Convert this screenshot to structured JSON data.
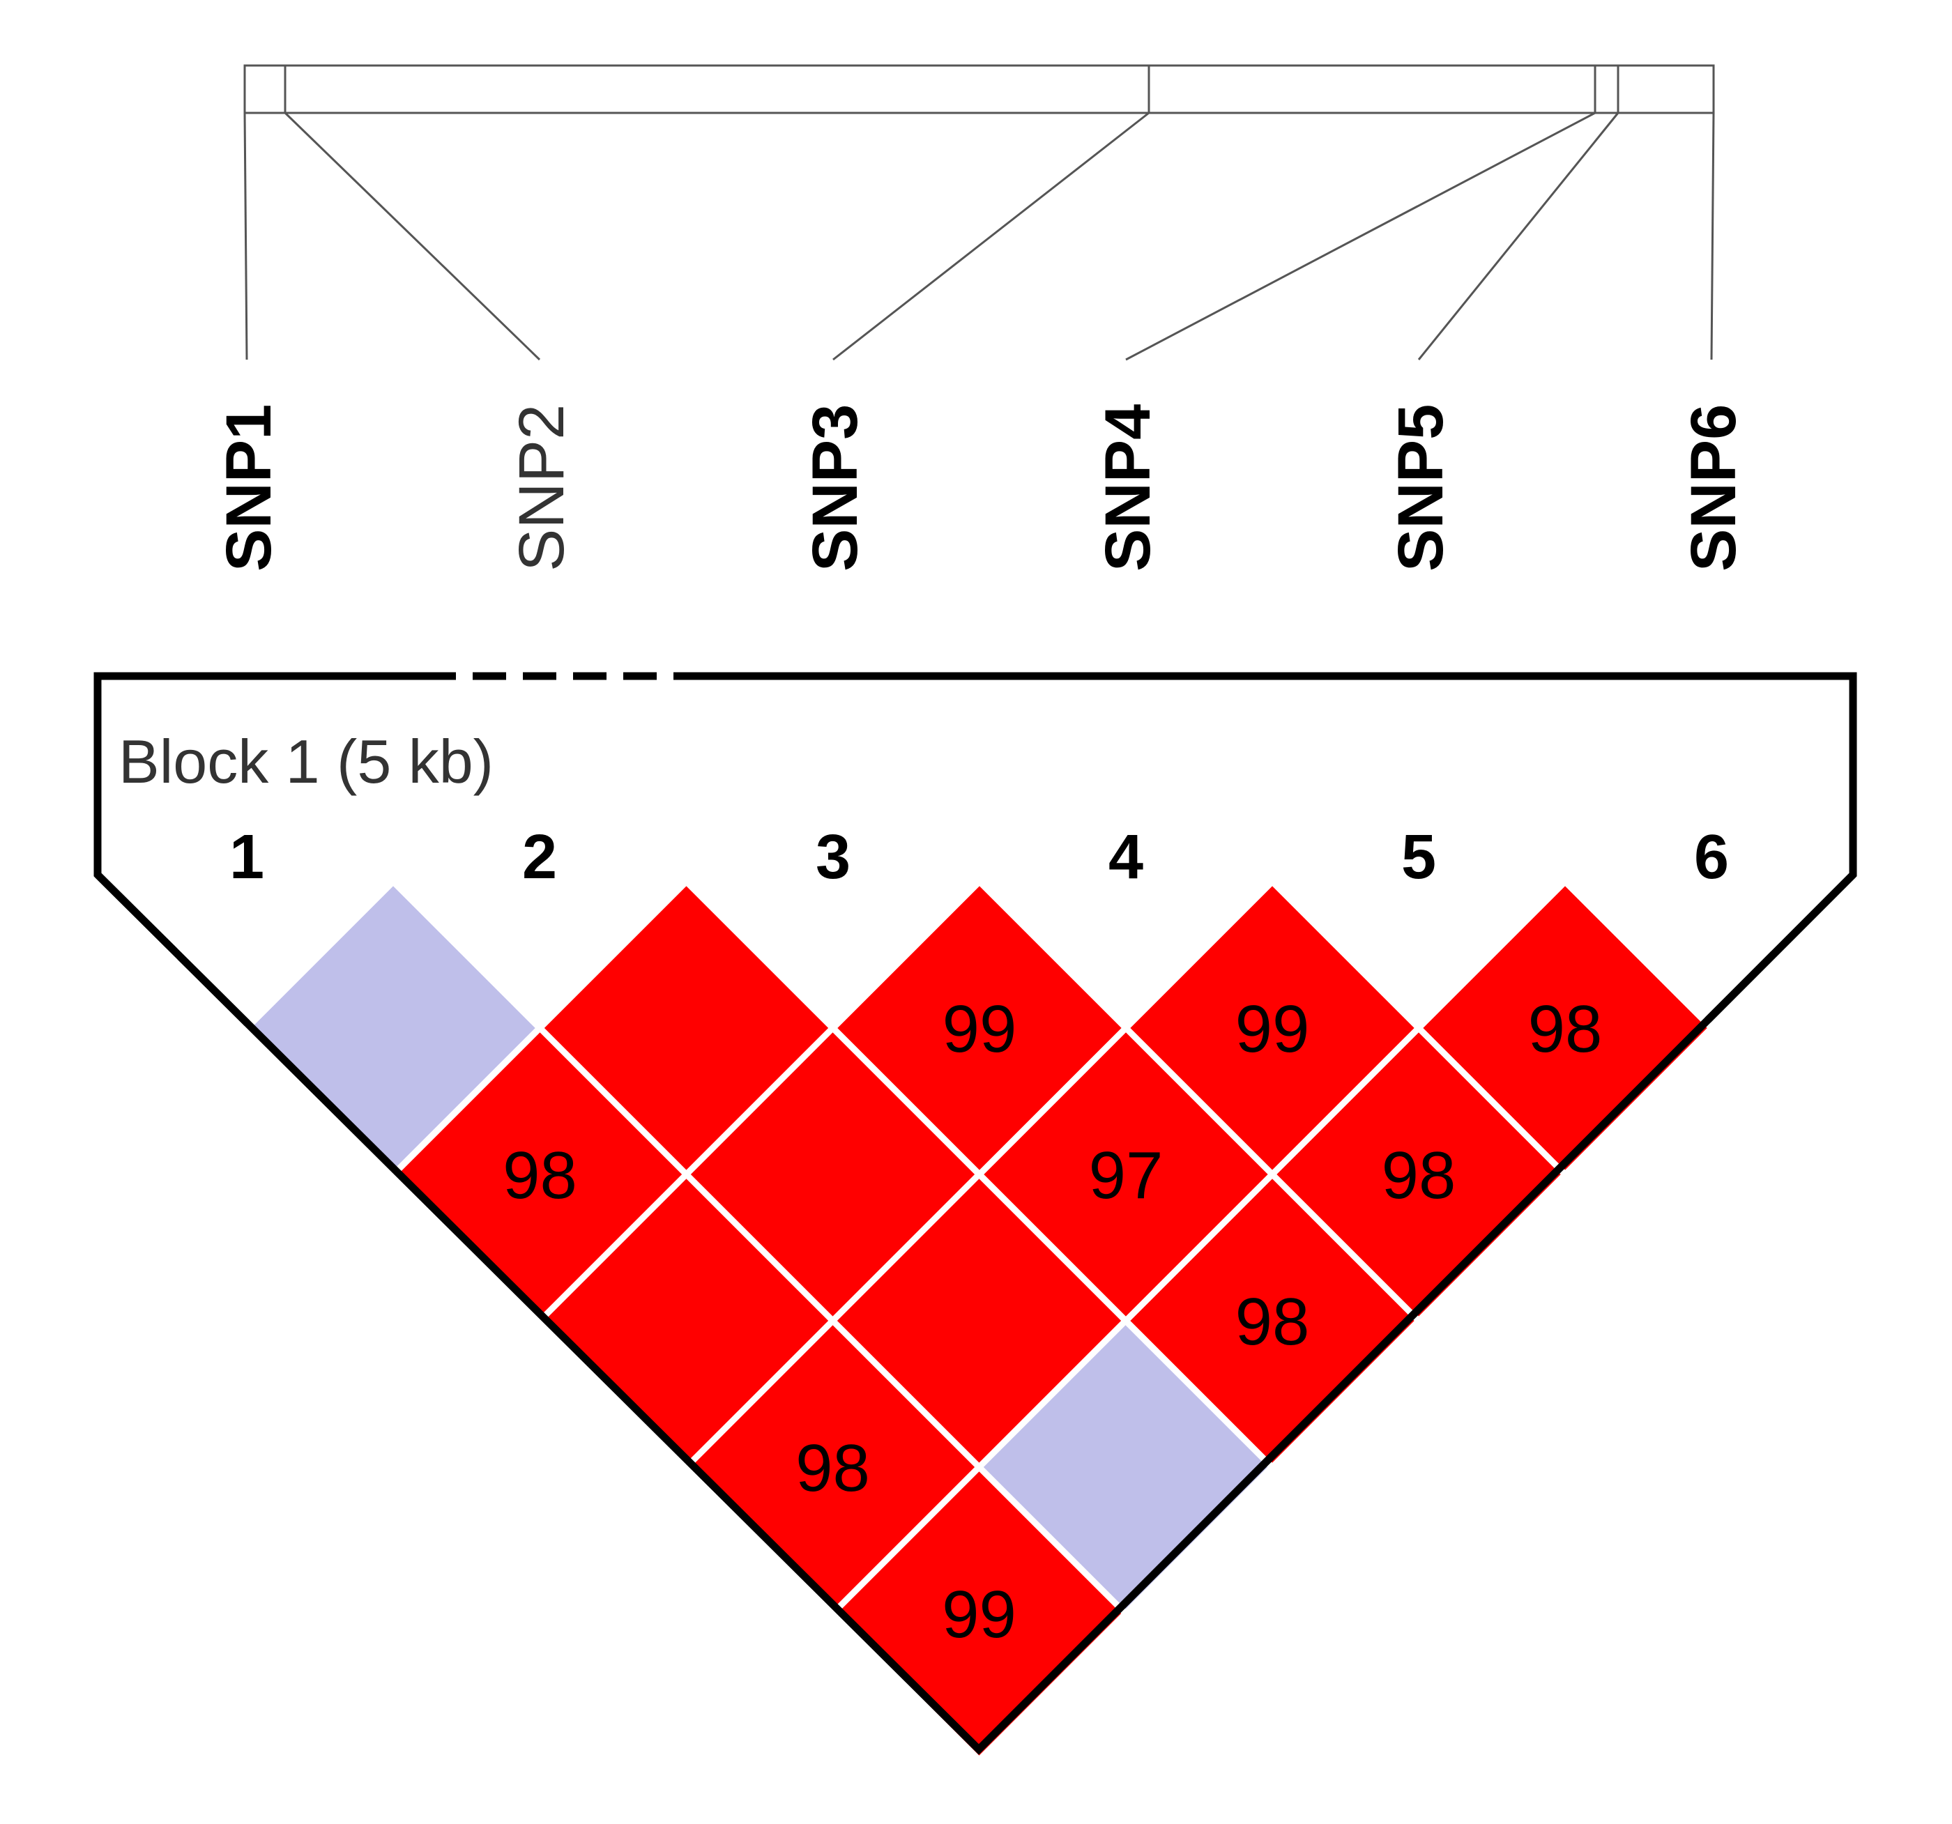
{
  "snps": [
    {
      "name": "SNP1",
      "index": "1",
      "style": "bold"
    },
    {
      "name": "SNP2",
      "index": "2",
      "style": "normal"
    },
    {
      "name": "SNP3",
      "index": "3",
      "style": "bold"
    },
    {
      "name": "SNP4",
      "index": "4",
      "style": "bold"
    },
    {
      "name": "SNP5",
      "index": "5",
      "style": "bold"
    },
    {
      "name": "SNP6",
      "index": "6",
      "style": "bold"
    }
  ],
  "block": {
    "label": "Block 1 (5 kb)"
  },
  "colors": {
    "strong_ld": "#ff0000",
    "weak_ld": "#bfbfea",
    "outline": "#000000",
    "cell_border": "#ffffff"
  },
  "ld_cells": [
    {
      "i": 1,
      "j": 2,
      "value": "",
      "color": "weak_ld"
    },
    {
      "i": 2,
      "j": 3,
      "value": "",
      "color": "strong_ld"
    },
    {
      "i": 3,
      "j": 4,
      "value": "99",
      "color": "strong_ld"
    },
    {
      "i": 4,
      "j": 5,
      "value": "99",
      "color": "strong_ld"
    },
    {
      "i": 5,
      "j": 6,
      "value": "98",
      "color": "strong_ld"
    },
    {
      "i": 1,
      "j": 3,
      "value": "98",
      "color": "strong_ld"
    },
    {
      "i": 2,
      "j": 4,
      "value": "",
      "color": "strong_ld"
    },
    {
      "i": 3,
      "j": 5,
      "value": "97",
      "color": "strong_ld"
    },
    {
      "i": 4,
      "j": 6,
      "value": "98",
      "color": "strong_ld"
    },
    {
      "i": 1,
      "j": 4,
      "value": "",
      "color": "strong_ld"
    },
    {
      "i": 2,
      "j": 5,
      "value": "",
      "color": "strong_ld"
    },
    {
      "i": 3,
      "j": 6,
      "value": "98",
      "color": "strong_ld"
    },
    {
      "i": 1,
      "j": 5,
      "value": "98",
      "color": "strong_ld"
    },
    {
      "i": 2,
      "j": 6,
      "value": "",
      "color": "weak_ld"
    },
    {
      "i": 1,
      "j": 6,
      "value": "99",
      "color": "strong_ld"
    }
  ]
}
